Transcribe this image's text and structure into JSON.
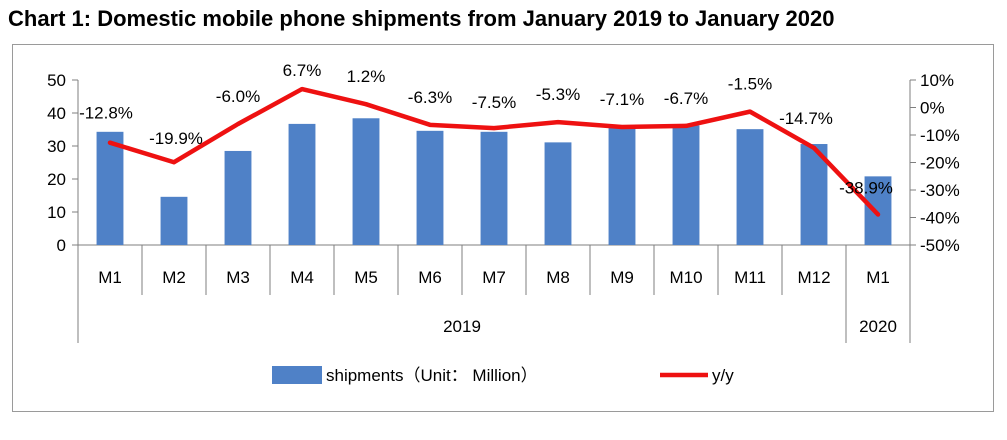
{
  "chart_data": {
    "type": "bar",
    "title": "Chart 1: Domestic mobile phone shipments from January 2019 to January 2020",
    "categories": [
      "M1",
      "M2",
      "M3",
      "M4",
      "M5",
      "M6",
      "M7",
      "M8",
      "M9",
      "M10",
      "M11",
      "M12",
      "M1"
    ],
    "year_groups": [
      {
        "label": "2019",
        "start": 0,
        "end": 11
      },
      {
        "label": "2020",
        "start": 12,
        "end": 12
      }
    ],
    "series": [
      {
        "name": "shipments（Unit： Million）",
        "type": "bar",
        "axis": "left",
        "color": "#4f81c7",
        "values": [
          34.3,
          14.6,
          28.5,
          36.7,
          38.4,
          34.6,
          34.3,
          31.1,
          36.2,
          36.2,
          35.1,
          30.6,
          20.8
        ]
      },
      {
        "name": "y/y",
        "type": "line",
        "axis": "right",
        "color": "#ee1111",
        "values": [
          -12.8,
          -19.9,
          -6.0,
          6.7,
          1.2,
          -6.3,
          -7.5,
          -5.3,
          -7.1,
          -6.7,
          -1.5,
          -14.7,
          -38.9
        ],
        "labels": [
          "-12.8%",
          "-19.9%",
          "-6.0%",
          "6.7%",
          "1.2%",
          "-6.3%",
          "-7.5%",
          "-5.3%",
          "-7.1%",
          "-6.7%",
          "-1.5%",
          "-14.7%",
          "-38.9%"
        ]
      }
    ],
    "y_left": {
      "min": 0,
      "max": 50,
      "ticks": [
        0,
        10,
        20,
        30,
        40,
        50
      ]
    },
    "y_right": {
      "min": -50,
      "max": 10,
      "ticks": [
        -50,
        -40,
        -30,
        -20,
        -10,
        0,
        10
      ],
      "tick_labels": [
        "-50%",
        "-40%",
        "-30%",
        "-20%",
        "-10%",
        "0%",
        "10%"
      ]
    },
    "legend_position": "bottom",
    "grid": false
  }
}
